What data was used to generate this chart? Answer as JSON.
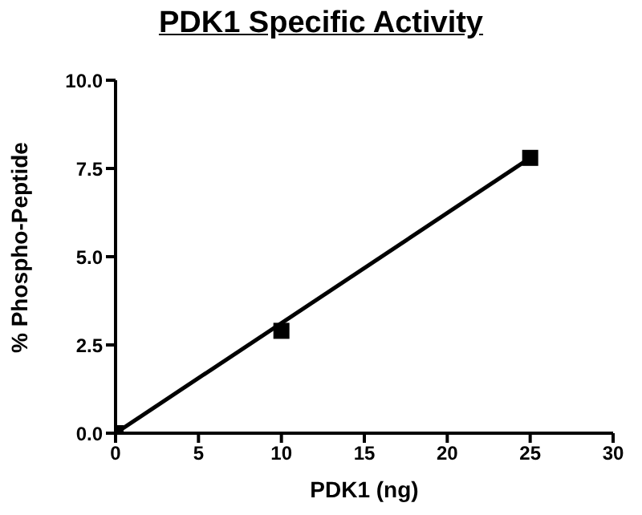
{
  "chart_data": {
    "type": "scatter",
    "title": "PDK1 Specific Activity",
    "xlabel": "PDK1 (ng)",
    "ylabel": "% Phospho-Peptide",
    "xlim": [
      0,
      30
    ],
    "xticks": [
      0,
      5,
      10,
      15,
      20,
      25,
      30
    ],
    "ylim": [
      0,
      10
    ],
    "yticks": [
      {
        "value": 0,
        "label": "0.0"
      },
      {
        "value": 2.5,
        "label": "2.5"
      },
      {
        "value": 5,
        "label": "5.0"
      },
      {
        "value": 7.5,
        "label": "7.5"
      },
      {
        "value": 10,
        "label": "10.0"
      }
    ],
    "grid": false,
    "legend": false,
    "series": [
      {
        "color": "#000000",
        "marker": "square",
        "x": [
          0,
          10,
          25
        ],
        "values": [
          0,
          2.9,
          7.8
        ]
      },
      {
        "type": "line",
        "color": "#000000",
        "marker": "none",
        "line_style": "solid",
        "x": [
          0,
          25
        ],
        "values": [
          0,
          7.8
        ]
      }
    ]
  }
}
